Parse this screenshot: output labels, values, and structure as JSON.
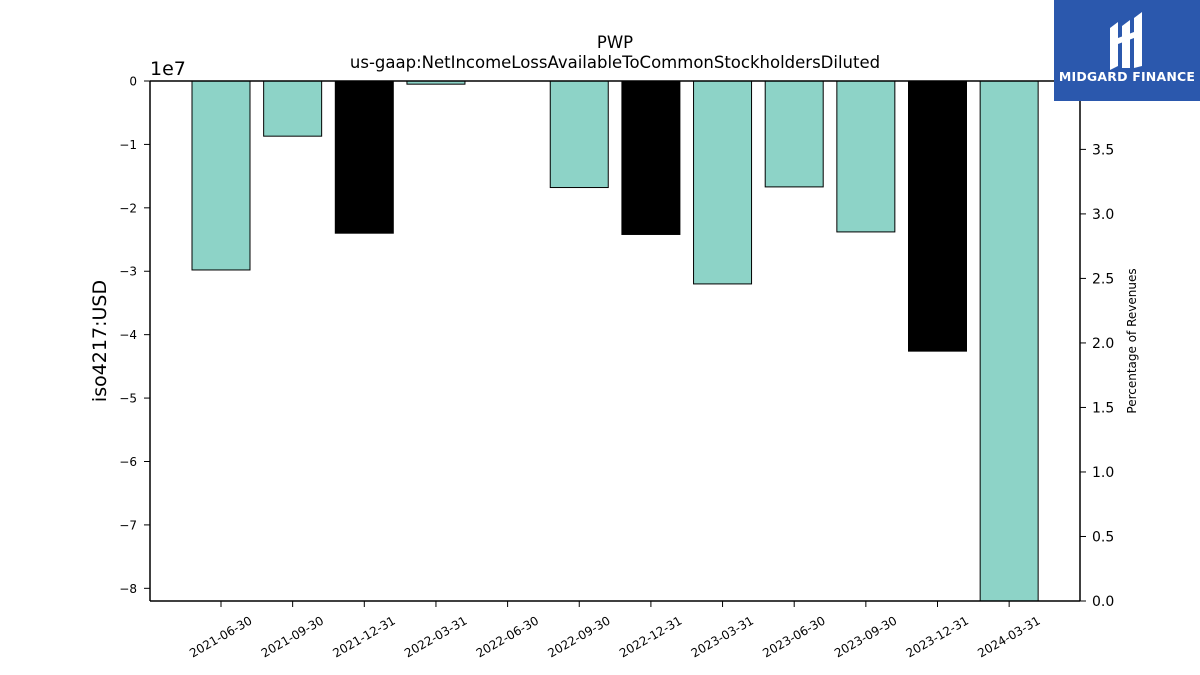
{
  "chart_data": {
    "type": "bar",
    "title": "PWP",
    "subtitle": "us-gaap:NetIncomeLossAvailableToCommonStockholdersDiluted",
    "ylabel": "iso4217:USD",
    "y_offset_label": "1e7",
    "y2label": "Percentage of Revenues",
    "categories": [
      "2021-06-30",
      "2021-09-30",
      "2021-12-31",
      "2022-03-31",
      "2022-06-30",
      "2022-09-30",
      "2022-12-31",
      "2023-03-31",
      "2023-06-30",
      "2023-09-30",
      "2023-12-31",
      "2024-03-31"
    ],
    "values": [
      -29800000,
      -8700000,
      -24000000,
      -500000,
      0,
      -16800000,
      -24200000,
      -32000000,
      -16700000,
      -23800000,
      -42600000,
      -82000000
    ],
    "bar_colors": [
      "#8dd3c7",
      "#8dd3c7",
      "#000000",
      "#8dd3c7",
      "#8dd3c7",
      "#8dd3c7",
      "#000000",
      "#8dd3c7",
      "#8dd3c7",
      "#8dd3c7",
      "#000000",
      "#8dd3c7"
    ],
    "ylim": [
      -82000000,
      0
    ],
    "yticks": [
      0,
      -10000000,
      -20000000,
      -30000000,
      -40000000,
      -50000000,
      -60000000,
      -70000000,
      -80000000
    ],
    "ytick_labels": [
      "0",
      "−1",
      "−2",
      "−3",
      "−4",
      "−5",
      "−6",
      "−7",
      "−8"
    ],
    "y2lim": [
      0,
      4.03
    ],
    "y2ticks": [
      0.0,
      0.5,
      1.0,
      1.5,
      2.0,
      2.5,
      3.0,
      3.5
    ],
    "y2tick_labels": [
      "0.0",
      "0.5",
      "1.0",
      "1.5",
      "2.0",
      "2.5",
      "3.0",
      "3.5"
    ],
    "grid": false,
    "legend": "none"
  },
  "logo": {
    "text": "MIDGARD FINANCE",
    "color": "#2b58ad"
  }
}
